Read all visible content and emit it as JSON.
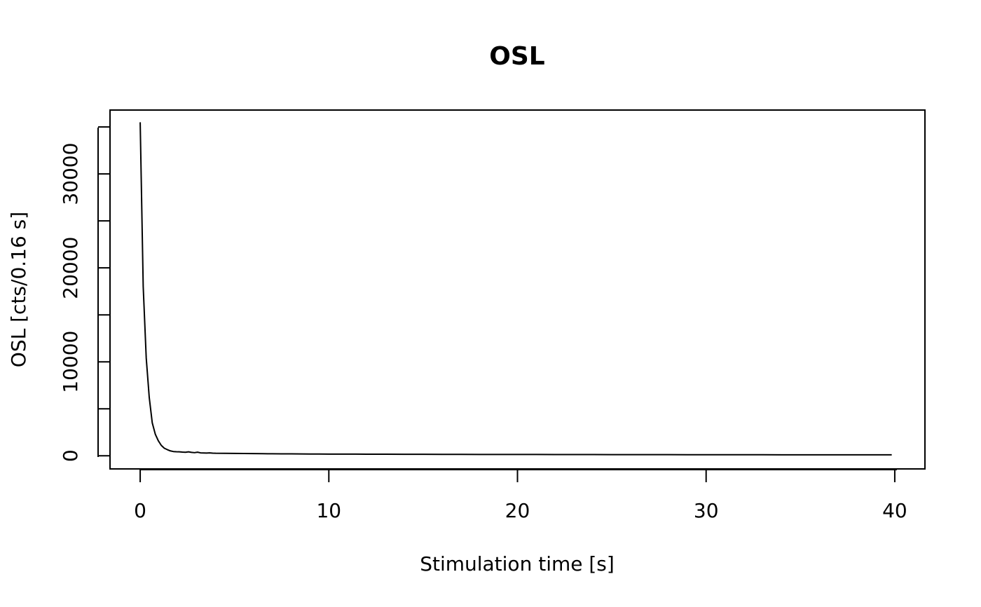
{
  "chart_data": {
    "type": "line",
    "title": "OSL",
    "xlabel": "Stimulation time [s]",
    "ylabel": "OSL [cts/0.16 s]",
    "xlim": [
      -1.6,
      41.6
    ],
    "ylim": [
      -1400,
      36800
    ],
    "x_ticks": [
      0,
      10,
      20,
      30,
      40
    ],
    "y_ticks": [
      0,
      5000,
      10000,
      15000,
      20000,
      25000,
      30000,
      35000
    ],
    "y_tick_labels": [
      "0",
      "10000",
      "20000",
      "30000"
    ],
    "y_tick_label_values": [
      0,
      10000,
      20000,
      30000
    ],
    "grid": false,
    "legend": "none",
    "line_color": "#000000",
    "series": [
      {
        "x": [
          0.0,
          0.16,
          0.32,
          0.48,
          0.64,
          0.8,
          0.96,
          1.12,
          1.28,
          1.44,
          1.6,
          1.76,
          1.92,
          2.08,
          2.24,
          2.4,
          2.56,
          2.72,
          2.88,
          3.04,
          3.2,
          3.36,
          3.52,
          3.68,
          3.84,
          4.0,
          4.5,
          5.0,
          5.5,
          6.0,
          6.5,
          7.0,
          7.5,
          8.0,
          8.5,
          9.0,
          9.5,
          10.0,
          11.0,
          12.0,
          13.0,
          14.0,
          15.0,
          16.0,
          17.0,
          18.0,
          19.0,
          20.0,
          21.0,
          22.0,
          23.0,
          24.0,
          25.0,
          26.0,
          27.0,
          28.0,
          29.0,
          30.0,
          31.0,
          32.0,
          33.0,
          34.0,
          35.0,
          36.0,
          37.0,
          38.0,
          39.0,
          39.84
        ],
        "values": [
          35500,
          18000,
          10400,
          6200,
          3500,
          2300,
          1600,
          1100,
          800,
          650,
          520,
          450,
          430,
          420,
          390,
          370,
          420,
          360,
          330,
          380,
          310,
          300,
          290,
          310,
          280,
          270,
          260,
          250,
          240,
          230,
          220,
          215,
          205,
          200,
          195,
          190,
          185,
          180,
          175,
          170,
          165,
          160,
          155,
          150,
          145,
          140,
          140,
          135,
          135,
          130,
          128,
          125,
          122,
          120,
          118,
          116,
          114,
          112,
          110,
          108,
          106,
          105,
          104,
          103,
          102,
          101,
          100,
          100
        ]
      }
    ]
  }
}
